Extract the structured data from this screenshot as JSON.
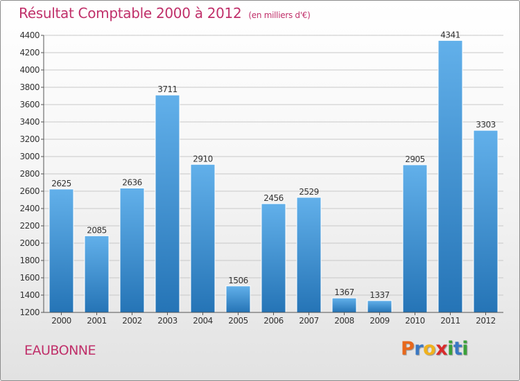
{
  "title": {
    "main": "Résultat Comptable 2000 à 2012",
    "unit": "(en milliers d'€)"
  },
  "town": "EAUBONNE",
  "brand": {
    "letters": [
      "P",
      "r",
      "o",
      "x",
      "i",
      "t",
      "i"
    ],
    "colors": [
      "#e8681c",
      "#3a78c3",
      "#f0b21d",
      "#d92b2b",
      "#3aa13a",
      "#3a78c3",
      "#3aa13a"
    ]
  },
  "colors": {
    "title": "#c0306a",
    "bar_top": "#62b0ea",
    "bar_bottom": "#2574b6",
    "grid": "#c8c8c8"
  },
  "chart_data": {
    "type": "bar",
    "title": "Résultat Comptable 2000 à 2012",
    "ylabel": "en milliers d'€",
    "xlabel": "",
    "ylim": [
      1200,
      4400
    ],
    "yticks": [
      1200,
      1400,
      1600,
      1800,
      2000,
      2200,
      2400,
      2600,
      2800,
      3000,
      3200,
      3400,
      3600,
      3800,
      4000,
      4200,
      4400
    ],
    "categories": [
      "2000",
      "2001",
      "2002",
      "2003",
      "2004",
      "2005",
      "2006",
      "2007",
      "2008",
      "2009",
      "2010",
      "2011",
      "2012"
    ],
    "values": [
      2625,
      2085,
      2636,
      3711,
      2910,
      1506,
      2456,
      2529,
      1367,
      1337,
      2905,
      4341,
      3303
    ],
    "grid": true
  }
}
